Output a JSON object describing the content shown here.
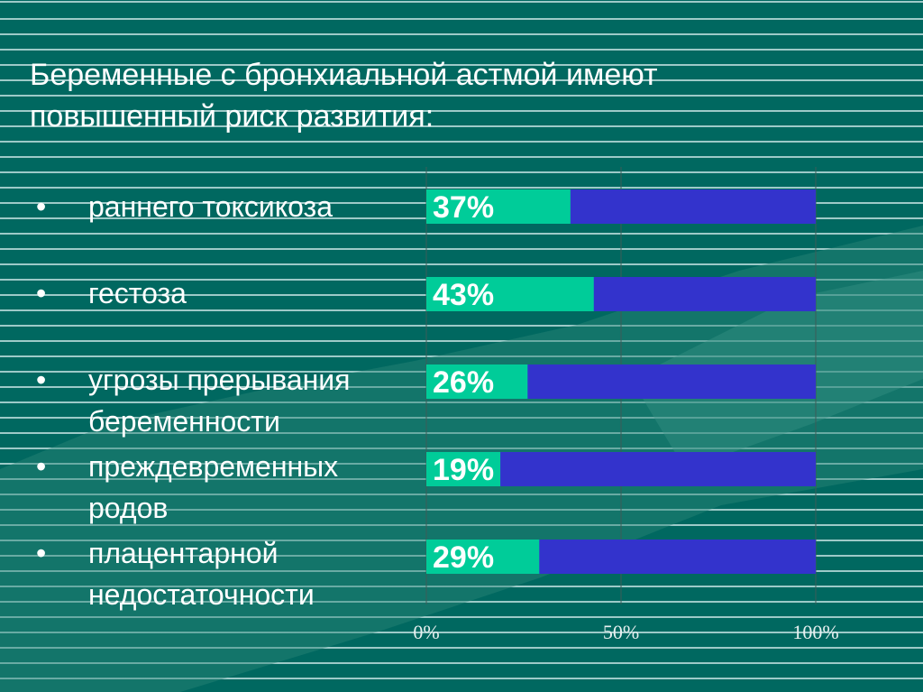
{
  "title": [
    "Беременные с бронхиальной астмой имеют",
    "повышенный риск развития:"
  ],
  "items": [
    {
      "bullet": "•",
      "label": "раннего токсикоза"
    },
    {
      "bullet": "•",
      "label": "гестоза"
    },
    {
      "bullet": "•",
      "label": "угрозы прерывания беременности"
    },
    {
      "bullet": "•",
      "label": "преждевременных родов"
    },
    {
      "bullet": "•",
      "label": "плацентарной недостаточности"
    }
  ],
  "chart_data": {
    "type": "bar",
    "orientation": "horizontal",
    "stacked_100": true,
    "categories": [
      "раннего токсикоза",
      "гестоза",
      "угрозы прерывания беременности",
      "преждевременных родов",
      "плацентарной недостаточности"
    ],
    "values": [
      37,
      43,
      26,
      19,
      29
    ],
    "labels": [
      "37%",
      "43%",
      "26%",
      "19%",
      "29%"
    ],
    "xlim": [
      0,
      100
    ],
    "xticks": [
      "0%",
      "50%",
      "100%"
    ],
    "colors": {
      "value": "#00CC99",
      "remainder": "#3333CC"
    }
  }
}
